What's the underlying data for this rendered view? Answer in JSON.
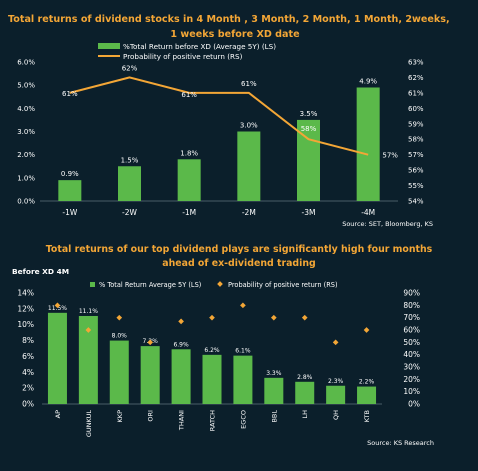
{
  "chart_data": [
    {
      "type": "bar",
      "title_line1": "Total returns of dividend stocks in 4 Month , 3 Month, 2 Month, 1 Month, 2weeks,",
      "title_line2": "1 weeks before XD date",
      "categories": [
        "-1W",
        "-2W",
        "-1M",
        "-2M",
        "-3M",
        "-4M"
      ],
      "series": [
        {
          "name": "%Total Return before XD (Average 5Y) (LS)",
          "type": "bar",
          "axis": "left",
          "values": [
            0.9,
            1.5,
            1.8,
            3.0,
            3.5,
            4.9
          ],
          "labels": [
            "0.9%",
            "1.5%",
            "1.8%",
            "3.0%",
            "3.5%",
            "4.9%"
          ]
        },
        {
          "name": "Probability of positive return (RS)",
          "type": "line",
          "axis": "right",
          "values": [
            61,
            62,
            61,
            61,
            58,
            57
          ],
          "labels": [
            "61%",
            "62%",
            "61%",
            "61%",
            "58%",
            "57%"
          ]
        }
      ],
      "y_left_ticks": [
        "0.0%",
        "1.0%",
        "2.0%",
        "3.0%",
        "4.0%",
        "5.0%",
        "6.0%"
      ],
      "y_right_ticks": [
        "54%",
        "55%",
        "56%",
        "57%",
        "58%",
        "59%",
        "60%",
        "61%",
        "62%",
        "63%"
      ],
      "ylim_left": [
        0,
        6
      ],
      "ylim_right": [
        54,
        63
      ],
      "source": "Source: SET, Bloomberg, KS",
      "colors": {
        "bar": "#5bb94a",
        "line": "#f3a636"
      },
      "legend": "top-center"
    },
    {
      "type": "bar",
      "title_line1": "Total returns of our top dividend plays are significantly high four months",
      "title_line2": "ahead of ex-dividend trading",
      "subtitle": "Before XD 4M",
      "categories": [
        "AP",
        "GUNKUL",
        "KKP",
        "ORI",
        "THANI",
        "RATCH",
        "EGCO",
        "BBL",
        "LH",
        "QH",
        "KTB"
      ],
      "series": [
        {
          "name": "% Total Return Average 5Y (LS)",
          "type": "bar",
          "axis": "left",
          "values": [
            11.5,
            11.1,
            8.0,
            7.3,
            6.9,
            6.2,
            6.1,
            3.3,
            2.8,
            2.3,
            2.2
          ],
          "labels": [
            "11.5%",
            "11.1%",
            "8.0%",
            "7.3%",
            "6.9%",
            "6.2%",
            "6.1%",
            "3.3%",
            "2.8%",
            "2.3%",
            "2.2%"
          ]
        },
        {
          "name": "Probability of positive return (RS)",
          "type": "scatter",
          "axis": "right",
          "values": [
            80,
            60,
            70,
            50,
            67,
            70,
            80,
            70,
            70,
            50,
            60
          ]
        }
      ],
      "y_left_ticks": [
        "0%",
        "2%",
        "4%",
        "6%",
        "8%",
        "10%",
        "12%",
        "14%"
      ],
      "y_right_ticks": [
        "0%",
        "10%",
        "20%",
        "30%",
        "40%",
        "50%",
        "60%",
        "70%",
        "80%",
        "90%"
      ],
      "ylim_left": [
        0,
        14
      ],
      "ylim_right": [
        0,
        90
      ],
      "source": "Source: KS Research",
      "colors": {
        "bar": "#5bb94a",
        "marker": "#f3a636"
      },
      "legend": "top-center"
    }
  ],
  "colors": {
    "background": "#0b1f2b",
    "title": "#f3a636",
    "text": "#ffffff",
    "grid": "#3a4e5a"
  }
}
